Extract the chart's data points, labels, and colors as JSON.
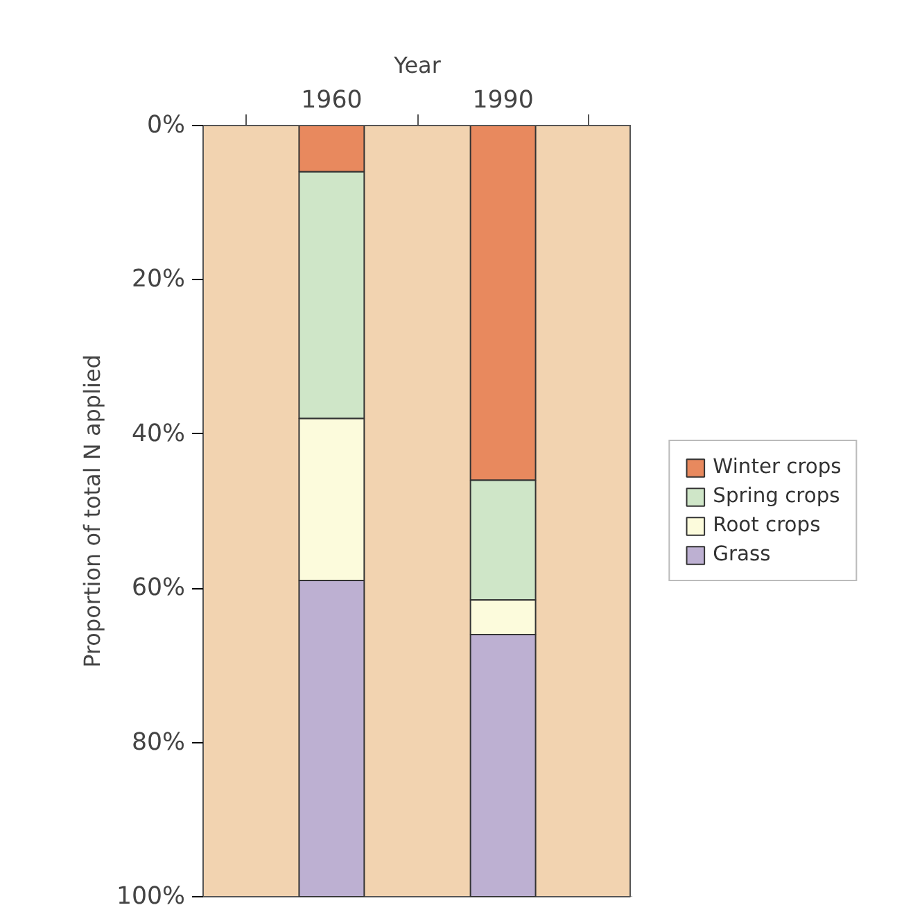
{
  "chart_data": {
    "type": "bar",
    "stacked": true,
    "xlabel": "Year",
    "ylabel": "Proportion of total N applied",
    "categories": [
      "1960",
      "1990"
    ],
    "series": [
      {
        "name": "Winter crops",
        "color": "#e8895e",
        "values": [
          6,
          46
        ]
      },
      {
        "name": "Spring crops",
        "color": "#cfe6c8",
        "values": [
          32,
          15.5
        ]
      },
      {
        "name": "Root crops",
        "color": "#fcfbdc",
        "values": [
          21,
          4.5
        ]
      },
      {
        "name": "Grass",
        "color": "#bdb0d2",
        "values": [
          41,
          34
        ]
      }
    ],
    "ylim": [
      100,
      0
    ],
    "yticks": [
      {
        "value": 0,
        "label": "0%"
      },
      {
        "value": 20,
        "label": "20%"
      },
      {
        "value": 40,
        "label": "40%"
      },
      {
        "value": 60,
        "label": "60%"
      },
      {
        "value": 80,
        "label": "80%"
      },
      {
        "value": 100,
        "label": "100%"
      }
    ],
    "legend": "right",
    "grid": false
  }
}
